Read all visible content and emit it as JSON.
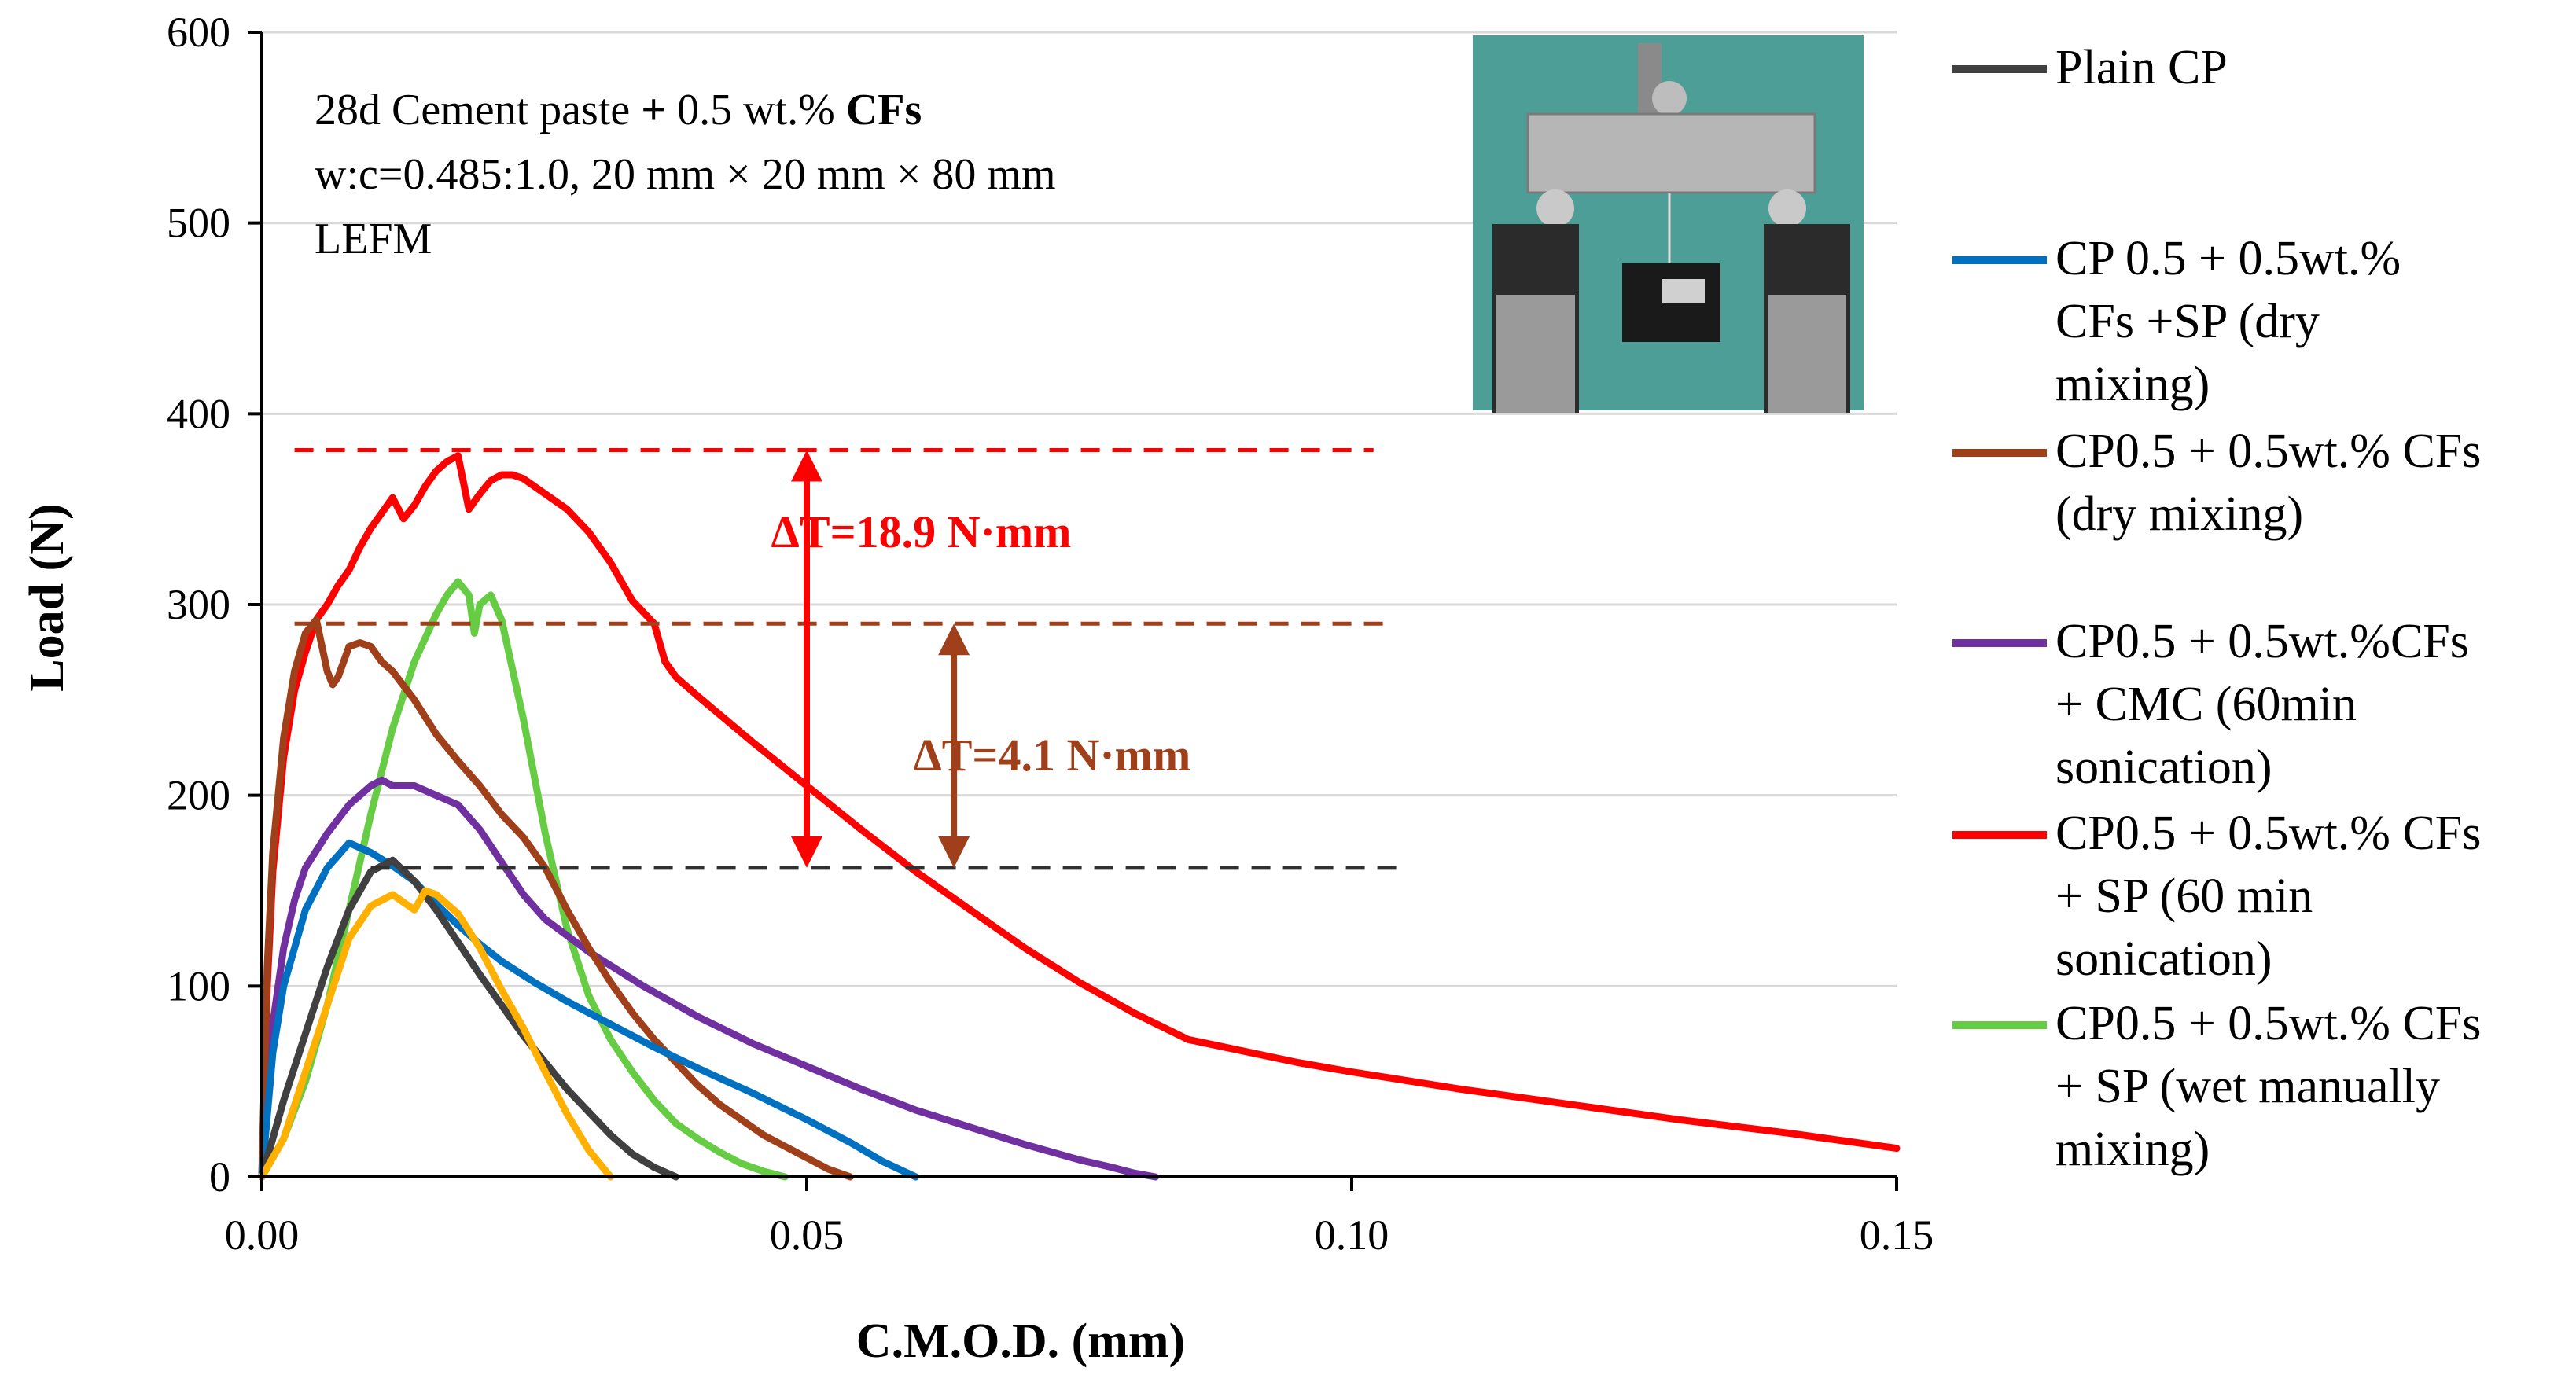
{
  "chart_data": {
    "type": "line",
    "xlabel": "C.M.O.D. (mm)",
    "ylabel": "Load (N)",
    "xlim": [
      0,
      0.15
    ],
    "ylim": [
      0,
      600
    ],
    "x_ticks": [
      0,
      0.05,
      0.1,
      0.15
    ],
    "x_tick_labels": [
      "0.00",
      "0.05",
      "0.10",
      "0.15"
    ],
    "y_ticks": [
      0,
      100,
      200,
      300,
      400,
      500,
      600
    ],
    "y_tick_labels": [
      "0",
      "100",
      "200",
      "300",
      "400",
      "500",
      "600"
    ],
    "grid": "horizontal",
    "legend_position": "right",
    "annotation": {
      "line1_prefix": "28d Cement paste",
      "line1_plus": "+",
      "line1_mid": "0.5 wt.%",
      "line1_bold": "CFs",
      "line2": "w:c=0.485:1.0, 20 mm × 20 mm × 80 mm",
      "line3": "LEFM"
    },
    "photo": {
      "description_icon": "three-point-bending-test-photo-icon",
      "bg_color": "#4e9e98"
    },
    "series": [
      {
        "name": "Plain CP",
        "legend_lines": [
          "Plain CP"
        ],
        "color": "#404040",
        "x": [
          0,
          0.002,
          0.004,
          0.006,
          0.008,
          0.01,
          0.012,
          0.014,
          0.016,
          0.018,
          0.02,
          0.022,
          0.024,
          0.026,
          0.028,
          0.03,
          0.032,
          0.034,
          0.036,
          0.038
        ],
        "y": [
          0,
          40,
          75,
          110,
          140,
          160,
          166,
          155,
          140,
          123,
          106,
          90,
          74,
          60,
          46,
          34,
          22,
          12,
          5,
          0
        ]
      },
      {
        "name": "CP 0.5 + 0.5wt.% CFs +SP (dry mixing)",
        "legend_lines": [
          "CP 0.5 + 0.5wt.%",
          "CFs +SP (dry",
          "mixing)"
        ],
        "color": "#0070c0",
        "x": [
          0,
          0.001,
          0.002,
          0.004,
          0.006,
          0.008,
          0.01,
          0.012,
          0.014,
          0.016,
          0.018,
          0.02,
          0.022,
          0.025,
          0.028,
          0.032,
          0.036,
          0.04,
          0.045,
          0.05,
          0.054,
          0.057,
          0.06
        ],
        "y": [
          0,
          65,
          100,
          140,
          162,
          175,
          170,
          163,
          155,
          143,
          132,
          122,
          113,
          102,
          92,
          80,
          68,
          57,
          44,
          30,
          18,
          8,
          0
        ]
      },
      {
        "name": "CP0.5 + 0.5wt.% CFs (dry mixing)",
        "legend_lines": [
          "CP0.5 + 0.5wt.% CFs",
          "(dry mixing)"
        ],
        "color": "#a0401a",
        "x": [
          0,
          0.0005,
          0.001,
          0.002,
          0.003,
          0.004,
          0.005,
          0.006,
          0.0065,
          0.007,
          0.008,
          0.009,
          0.01,
          0.011,
          0.012,
          0.014,
          0.016,
          0.018,
          0.02,
          0.022,
          0.024,
          0.026,
          0.028,
          0.03,
          0.032,
          0.034,
          0.036,
          0.038,
          0.04,
          0.042,
          0.044,
          0.046,
          0.048,
          0.05,
          0.052,
          0.054
        ],
        "y": [
          0,
          110,
          170,
          230,
          265,
          285,
          292,
          265,
          258,
          262,
          278,
          280,
          278,
          270,
          265,
          250,
          232,
          218,
          205,
          190,
          178,
          162,
          140,
          120,
          102,
          86,
          72,
          60,
          48,
          38,
          30,
          22,
          16,
          10,
          4,
          0
        ]
      },
      {
        "name": "CP0.5 + 0.5wt.%CFs + CMC (60min sonication)",
        "legend_lines": [
          "CP0.5 + 0.5wt.%CFs",
          "+ CMC (60min",
          "sonication)"
        ],
        "color": "#7030a0",
        "x": [
          0,
          0.001,
          0.002,
          0.003,
          0.004,
          0.006,
          0.008,
          0.01,
          0.011,
          0.012,
          0.014,
          0.016,
          0.018,
          0.02,
          0.022,
          0.024,
          0.026,
          0.03,
          0.035,
          0.04,
          0.045,
          0.05,
          0.055,
          0.06,
          0.065,
          0.07,
          0.075,
          0.078,
          0.08,
          0.082
        ],
        "y": [
          0,
          80,
          120,
          145,
          162,
          180,
          195,
          205,
          208,
          205,
          205,
          200,
          195,
          182,
          165,
          148,
          135,
          118,
          100,
          84,
          70,
          58,
          46,
          35,
          26,
          17,
          9,
          5,
          2,
          0
        ]
      },
      {
        "name": "CP0.5 + 0.5wt.% CFs + SP (60 min sonication)",
        "legend_lines": [
          "CP0.5 + 0.5wt.% CFs",
          "+ SP (60 min",
          "sonication)"
        ],
        "color": "#ff0000",
        "x": [
          0,
          0.0005,
          0.001,
          0.002,
          0.003,
          0.004,
          0.005,
          0.006,
          0.007,
          0.008,
          0.009,
          0.01,
          0.011,
          0.012,
          0.013,
          0.014,
          0.015,
          0.016,
          0.017,
          0.018,
          0.019,
          0.02,
          0.021,
          0.022,
          0.023,
          0.024,
          0.026,
          0.028,
          0.03,
          0.032,
          0.034,
          0.036,
          0.037,
          0.038,
          0.04,
          0.045,
          0.05,
          0.055,
          0.06,
          0.065,
          0.07,
          0.075,
          0.08,
          0.085,
          0.09,
          0.095,
          0.1,
          0.11,
          0.12,
          0.13,
          0.14,
          0.15
        ],
        "y": [
          0,
          100,
          160,
          220,
          255,
          275,
          292,
          300,
          310,
          318,
          330,
          340,
          348,
          356,
          345,
          352,
          362,
          370,
          375,
          378,
          350,
          358,
          365,
          368,
          368,
          366,
          358,
          350,
          338,
          322,
          302,
          290,
          270,
          262,
          252,
          228,
          205,
          182,
          160,
          140,
          120,
          102,
          86,
          72,
          66,
          60,
          55,
          46,
          38,
          30,
          23,
          15
        ]
      },
      {
        "name": "CP0.5 + 0.5wt.% CFs + SP (wet manually mixing)",
        "legend_lines": [
          "CP0.5 + 0.5wt.% CFs",
          "+ SP (wet manually",
          "mixing)"
        ],
        "color": "#66cc44",
        "x": [
          0,
          0.002,
          0.004,
          0.006,
          0.008,
          0.01,
          0.012,
          0.014,
          0.016,
          0.017,
          0.018,
          0.019,
          0.0195,
          0.02,
          0.021,
          0.022,
          0.024,
          0.026,
          0.028,
          0.03,
          0.032,
          0.034,
          0.036,
          0.038,
          0.04,
          0.042,
          0.044,
          0.046,
          0.048
        ],
        "y": [
          0,
          20,
          50,
          90,
          140,
          190,
          235,
          270,
          295,
          305,
          312,
          305,
          285,
          300,
          305,
          292,
          240,
          180,
          130,
          95,
          72,
          55,
          40,
          28,
          20,
          13,
          7,
          3,
          0
        ]
      },
      {
        "name": "Orange (unlabeled)",
        "legend_lines": [],
        "color": "#ffb000",
        "x": [
          0,
          0.002,
          0.004,
          0.006,
          0.008,
          0.01,
          0.012,
          0.014,
          0.015,
          0.016,
          0.018,
          0.02,
          0.022,
          0.024,
          0.026,
          0.028,
          0.03,
          0.032
        ],
        "y": [
          0,
          20,
          55,
          90,
          125,
          142,
          148,
          140,
          150,
          148,
          138,
          120,
          98,
          78,
          55,
          33,
          14,
          0
        ]
      }
    ],
    "reference_lines": [
      {
        "name": "red-peak-ref",
        "y": 381,
        "x_start": 0.003,
        "x_end": 0.102,
        "color": "#ff0000"
      },
      {
        "name": "brown-peak-ref",
        "y": 290,
        "x_start": 0.003,
        "x_end": 0.104,
        "color": "#a0401a"
      },
      {
        "name": "plain-peak-ref",
        "y": 162,
        "x_start": 0.01,
        "x_end": 0.105,
        "color": "#303030"
      }
    ],
    "delta_annotations": [
      {
        "label": "ΔT=18.9 N·mm",
        "x": 0.05,
        "y_top": 381,
        "y_bottom": 162,
        "color": "#ff0000",
        "label_x": 0.0605,
        "label_y": 330
      },
      {
        "label": "ΔT=4.1 N·mm",
        "x": 0.0635,
        "y_top": 290,
        "y_bottom": 162,
        "color": "#a0401a",
        "label_x": 0.0725,
        "label_y": 213
      }
    ]
  }
}
